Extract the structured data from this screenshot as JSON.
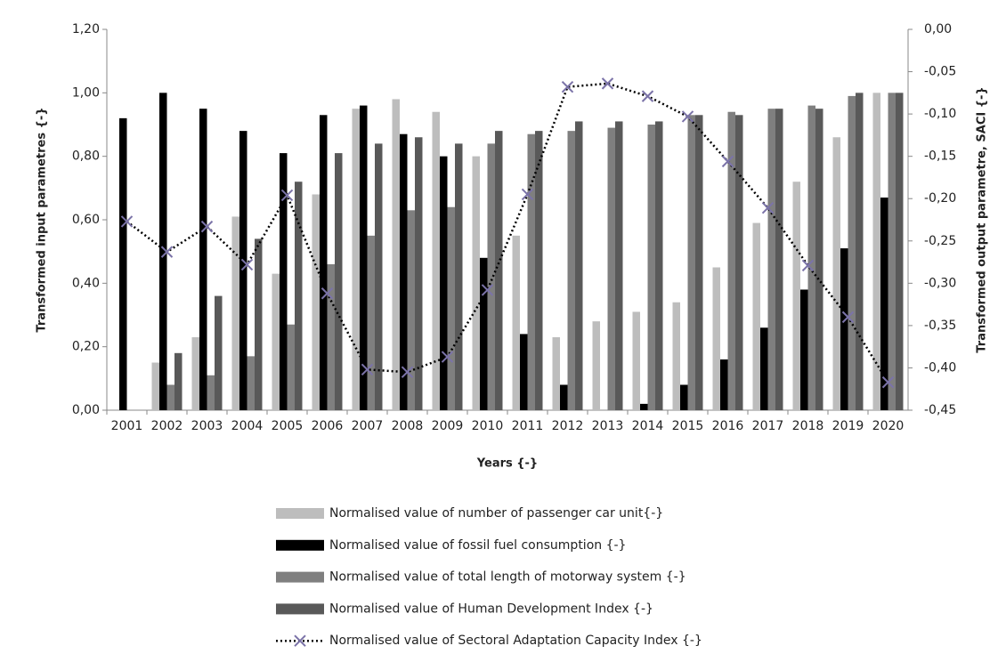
{
  "chart_data": {
    "type": "bar",
    "xlabel": "Years {-}",
    "ylabel": "Transformed input parametres {-}",
    "y2label": "Transformed output parametre, SACI {-}",
    "categories": [
      "2001",
      "2002",
      "2003",
      "2004",
      "2005",
      "2006",
      "2007",
      "2008",
      "2009",
      "2010",
      "2011",
      "2012",
      "2013",
      "2014",
      "2015",
      "2016",
      "2017",
      "2018",
      "2019",
      "2020"
    ],
    "ylim": [
      0,
      1.2
    ],
    "yticks": [
      {
        "value": 0,
        "label": "0,00"
      },
      {
        "value": 0.2,
        "label": "0,20"
      },
      {
        "value": 0.4,
        "label": "0,40"
      },
      {
        "value": 0.6,
        "label": "0,60"
      },
      {
        "value": 0.8,
        "label": "0,80"
      },
      {
        "value": 1,
        "label": "1,00"
      },
      {
        "value": 1.2,
        "label": "1,20"
      }
    ],
    "y2lim": [
      -0.45,
      0
    ],
    "y2ticks": [
      {
        "value": 0,
        "label": "0,00"
      },
      {
        "value": -0.05,
        "label": "-0,05"
      },
      {
        "value": -0.1,
        "label": "-0,10"
      },
      {
        "value": -0.15,
        "label": "-0,15"
      },
      {
        "value": -0.2,
        "label": "-0,20"
      },
      {
        "value": -0.25,
        "label": "-0,25"
      },
      {
        "value": -0.3,
        "label": "-0,30"
      },
      {
        "value": -0.35,
        "label": "-0,35"
      },
      {
        "value": -0.4,
        "label": "-0,40"
      },
      {
        "value": -0.45,
        "label": "-0,45"
      }
    ],
    "series": [
      {
        "name": "Normalised value of number of passenger car unit{-}",
        "color": "#bdbdbd",
        "values": [
          0,
          0.15,
          0.23,
          0.61,
          0.43,
          0.68,
          0.95,
          0.98,
          0.94,
          0.8,
          0.55,
          0.23,
          0.28,
          0.31,
          0.34,
          0.45,
          0.59,
          0.72,
          0.86,
          1.0
        ]
      },
      {
        "name": "Normalised value of fossil fuel consumption {-}",
        "color": "#000000",
        "values": [
          0.92,
          1.0,
          0.95,
          0.88,
          0.81,
          0.93,
          0.96,
          0.87,
          0.8,
          0.48,
          0.24,
          0.08,
          0,
          0.02,
          0.08,
          0.16,
          0.26,
          0.38,
          0.51,
          0.67
        ]
      },
      {
        "name": "Normalised value of total length of motorway system {-}",
        "color": "#7f7f7f",
        "values": [
          0,
          0.08,
          0.11,
          0.17,
          0.27,
          0.46,
          0.55,
          0.63,
          0.64,
          0.84,
          0.87,
          0.88,
          0.89,
          0.9,
          0.93,
          0.94,
          0.95,
          0.96,
          0.99,
          1.0
        ]
      },
      {
        "name": "Normalised value of Human Development Index {-}",
        "color": "#595959",
        "values": [
          0,
          0.18,
          0.36,
          0.54,
          0.72,
          0.81,
          0.84,
          0.86,
          0.84,
          0.88,
          0.88,
          0.91,
          0.91,
          0.91,
          0.93,
          0.93,
          0.95,
          0.95,
          1.0,
          1.0
        ]
      },
      {
        "name": "Normalised value of Sectoral Adaptation Capacity Index {-}",
        "type": "line",
        "axis": "y2",
        "color": "#7b73a8",
        "line_color": "#000000",
        "values": [
          -0.227,
          -0.263,
          -0.233,
          -0.278,
          -0.196,
          -0.312,
          -0.402,
          -0.405,
          -0.387,
          -0.308,
          -0.195,
          -0.068,
          -0.064,
          -0.079,
          -0.103,
          -0.156,
          -0.211,
          -0.279,
          -0.34,
          -0.417
        ]
      }
    ]
  }
}
